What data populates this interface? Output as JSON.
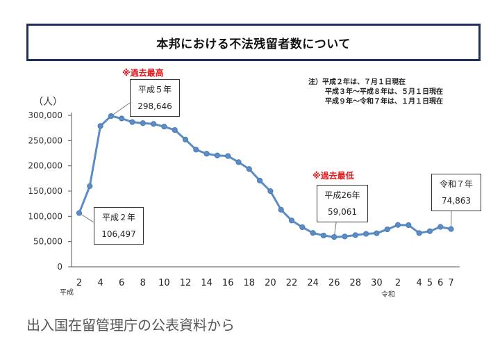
{
  "chart_data": {
    "type": "line",
    "title": "本邦における不法残留者数について",
    "ylabel": "（人）",
    "ylim": [
      0,
      300000
    ],
    "yticks": [
      "0",
      "50,000",
      "100,000",
      "150,000",
      "200,000",
      "250,000",
      "300,000"
    ],
    "x_index": [
      0,
      1,
      2,
      3,
      4,
      5,
      6,
      7,
      8,
      9,
      10,
      11,
      12,
      13,
      14,
      15,
      16,
      17,
      18,
      19,
      20,
      21,
      22,
      23,
      24,
      25,
      26,
      27,
      28,
      29,
      30,
      31,
      32,
      33,
      34,
      35
    ],
    "values": [
      106497,
      159800,
      278900,
      298646,
      293800,
      286700,
      284500,
      283000,
      277600,
      271000,
      252000,
      232100,
      224000,
      220500,
      219400,
      207300,
      193700,
      170800,
      149800,
      113100,
      91800,
      78500,
      67100,
      62000,
      59061,
      60000,
      62800,
      65300,
      66500,
      74200,
      82900,
      82600,
      66800,
      70500,
      79100,
      74863
    ],
    "xtick_labels": [
      {
        "i": 0,
        "label": "2"
      },
      {
        "i": 2,
        "label": "4"
      },
      {
        "i": 4,
        "label": "6"
      },
      {
        "i": 6,
        "label": "8"
      },
      {
        "i": 8,
        "label": "10"
      },
      {
        "i": 10,
        "label": "12"
      },
      {
        "i": 12,
        "label": "14"
      },
      {
        "i": 14,
        "label": "16"
      },
      {
        "i": 16,
        "label": "18"
      },
      {
        "i": 18,
        "label": "20"
      },
      {
        "i": 20,
        "label": "22"
      },
      {
        "i": 22,
        "label": "24"
      },
      {
        "i": 24,
        "label": "26"
      },
      {
        "i": 26,
        "label": "28"
      },
      {
        "i": 28,
        "label": "30"
      },
      {
        "i": 30,
        "label": "2"
      },
      {
        "i": 32,
        "label": "4"
      },
      {
        "i": 33,
        "label": "5"
      },
      {
        "i": 34,
        "label": "6"
      },
      {
        "i": 35,
        "label": "7"
      }
    ],
    "era_labels": {
      "heisei": "平成",
      "reiwa": "令和"
    },
    "series_color": "#5b8cc6",
    "annotations": {
      "record_high": "※過去最高",
      "record_low": "※過去最低",
      "callout_h2": {
        "era": "平成２年",
        "value": "106,497"
      },
      "callout_h5": {
        "era": "平成５年",
        "value": "298,646"
      },
      "callout_h26": {
        "era": "平成26年",
        "value": "59,061"
      },
      "callout_r7": {
        "era": "令和７年",
        "value": "74,863"
      }
    },
    "note_lines": [
      "注）平成２年は、７月１日現在",
      "平成３年～平成８年は、５月１日現在",
      "平成９年～令和７年は、１月１日現在"
    ]
  },
  "caption": "出入国在留管理庁の公表資料から"
}
